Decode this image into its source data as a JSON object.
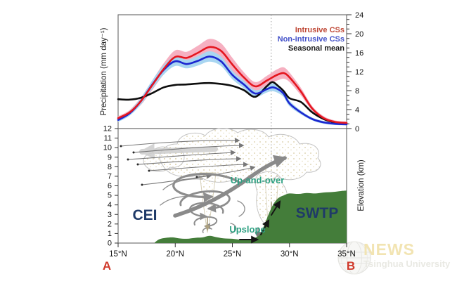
{
  "watermark": {
    "title": "NEWS",
    "subtitle": "Tsinghua University"
  },
  "labels": {
    "precip_axis": "Precipitation (mm day⁻¹)",
    "elevation_axis": "Elevation (km)",
    "region_left": "CEI",
    "region_right": "SWTP",
    "flow_upandover": "Up-and-over",
    "flow_upslope": "Upslope",
    "corner_left": "A",
    "corner_right": "B"
  },
  "colors": {
    "intrusive_line": "#e5161f",
    "intrusive_band": "#f6b0c1",
    "intrusive_legend": "#bf4937",
    "nonintrusive_line": "#1c27d0",
    "nonintrusive_band": "#a9d6f1",
    "nonintrusive_legend": "#4452c9",
    "seasonal_line": "#0d0d0d",
    "seasonal_legend": "#1a1a1a",
    "terrain_green": "#447d3a",
    "region_text": "#1f3a68",
    "flow_text": "#2ea183",
    "corner_marker": "#d0392b",
    "dotted_line": "#999999",
    "frame": "#666666",
    "watermark_title": "#f2e4b2",
    "watermark_sub": "#e9e9e3"
  },
  "chart_data": [
    {
      "type": "line",
      "panel": "top",
      "ylabel": "Precipitation (mm day⁻¹)",
      "ylim": [
        0,
        24
      ],
      "yticks_labeled": [
        0,
        4,
        8,
        12,
        16,
        20,
        24
      ],
      "ytick_minor_step": 1,
      "y_axis_side": "right",
      "xlim": [
        15,
        35
      ],
      "x": [
        15,
        16,
        17,
        18,
        19,
        20,
        21,
        22,
        23,
        24,
        25,
        26,
        27,
        28,
        28.5,
        29,
        29.5,
        30,
        31,
        32,
        33,
        34,
        35
      ],
      "series": [
        {
          "name": "Intrusive CSs",
          "values": [
            2.2,
            3.4,
            5.8,
            9.2,
            12.6,
            15.1,
            14.9,
            16.0,
            17.2,
            16.4,
            13.5,
            10.8,
            8.9,
            10.1,
            10.8,
            11.4,
            11.7,
            10.8,
            7.8,
            4.2,
            2.2,
            1.4,
            1.2
          ],
          "band_halfwidth": [
            0.4,
            0.5,
            0.8,
            1.0,
            1.2,
            1.4,
            1.3,
            1.5,
            1.7,
            1.6,
            1.4,
            1.1,
            0.9,
            1.0,
            1.1,
            1.2,
            1.2,
            1.0,
            0.8,
            0.5,
            0.4,
            0.3,
            0.3
          ],
          "color_key": "intrusive_line",
          "band_key": "intrusive_band",
          "legend_key": "intrusive_legend"
        },
        {
          "name": "Non-intrusive CSs",
          "values": [
            1.8,
            3.2,
            5.8,
            9.3,
            12.4,
            14.2,
            13.6,
            14.3,
            15.2,
            14.2,
            11.3,
            9.3,
            7.4,
            8.3,
            8.7,
            8.3,
            7.3,
            5.3,
            3.4,
            2.0,
            1.3,
            1.0,
            0.9
          ],
          "band_halfwidth": [
            0.4,
            0.5,
            0.7,
            0.9,
            1.0,
            1.0,
            0.9,
            1.0,
            1.1,
            1.0,
            0.9,
            0.8,
            0.7,
            0.7,
            0.8,
            0.8,
            0.7,
            0.6,
            0.4,
            0.3,
            0.3,
            0.25,
            0.25
          ],
          "color_key": "nonintrusive_line",
          "band_key": "nonintrusive_band",
          "legend_key": "nonintrusive_legend"
        },
        {
          "name": "Seasonal mean",
          "values": [
            6.2,
            6.1,
            6.5,
            7.5,
            8.7,
            9.2,
            9.3,
            9.5,
            9.6,
            9.4,
            9.0,
            8.1,
            6.7,
            8.9,
            9.8,
            9.0,
            7.9,
            6.4,
            5.6,
            3.4,
            2.0,
            1.3,
            1.1
          ],
          "color_key": "seasonal_line",
          "legend_key": "seasonal_legend"
        }
      ],
      "vline_x": 28.4,
      "legend_position": "top-right"
    },
    {
      "type": "area",
      "panel": "bottom",
      "ylabel": "Elevation (km)",
      "ylim": [
        0,
        12
      ],
      "yticks_labeled": [
        0,
        1,
        2,
        3,
        4,
        5,
        6,
        7,
        8,
        9,
        10,
        11,
        12
      ],
      "y_axis_side": "left",
      "xlim": [
        15,
        35
      ],
      "xticks": [
        15,
        20,
        25,
        30,
        35
      ],
      "xtick_labels": [
        "15°N",
        "20°N",
        "25°N",
        "30°N",
        "35°N"
      ],
      "terrain_profile": {
        "name": "terrain elevation profile",
        "x": [
          18.2,
          18.6,
          19.2,
          19.8,
          20.3,
          21.0,
          21.8,
          22.4,
          23.0,
          23.5,
          24.2,
          25.0,
          25.8,
          26.5,
          27.0,
          27.4,
          27.8,
          28.2,
          28.6,
          29.0,
          29.5,
          30.0,
          30.8,
          31.5,
          32.3,
          33.0,
          33.8,
          34.5,
          35.0
        ],
        "elevation_km": [
          0.05,
          0.4,
          0.55,
          0.6,
          0.5,
          0.45,
          0.55,
          0.6,
          0.75,
          0.65,
          0.5,
          0.45,
          0.35,
          0.4,
          0.55,
          0.9,
          1.9,
          3.1,
          4.1,
          4.7,
          5.0,
          5.2,
          5.15,
          5.25,
          5.2,
          5.3,
          5.35,
          5.45,
          5.5
        ]
      },
      "annotations": [
        "CEI",
        "SWTP",
        "Up-and-over",
        "Upslope"
      ]
    }
  ]
}
